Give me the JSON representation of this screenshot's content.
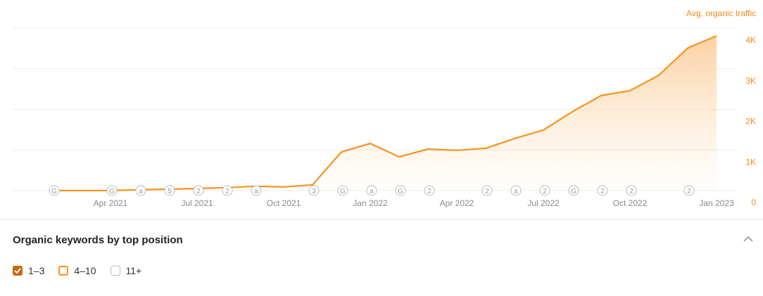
{
  "chart_data": {
    "type": "line",
    "y_label": "Avg. organic traffic",
    "categories": [
      null,
      null,
      "Apr 2021",
      null,
      null,
      "Jul 2021",
      null,
      null,
      "Oct 2021",
      null,
      null,
      "Jan 2022",
      null,
      null,
      "Apr 2022",
      null,
      null,
      "Jul 2022",
      null,
      null,
      "Oct 2022",
      null,
      null,
      "Jan 2023"
    ],
    "series": [
      {
        "name": "Avg. organic traffic",
        "color": "#f7931e",
        "values": [
          0,
          0,
          0,
          20,
          35,
          50,
          70,
          105,
          90,
          140,
          950,
          1160,
          830,
          1020,
          990,
          1040,
          1280,
          1490,
          1940,
          2340,
          2460,
          2840,
          3510,
          3810
        ]
      }
    ],
    "events": [
      "G",
      null,
      "G",
      "a",
      "5",
      "2",
      "2",
      "a",
      null,
      "3",
      "G",
      "a",
      "G",
      "2",
      null,
      "2",
      "a",
      "2",
      "G",
      "2",
      "2",
      null,
      "2",
      null
    ],
    "ylim": [
      0,
      4000
    ],
    "yticks": [
      0,
      {
        "value": 1000,
        "label": "1K"
      },
      {
        "value": 2000,
        "label": "2K"
      },
      {
        "value": 3000,
        "label": "3K"
      },
      {
        "value": 4000,
        "label": "4K"
      }
    ],
    "grid": true
  },
  "panel": {
    "title": "Organic keywords by top position",
    "filters": [
      {
        "label": "1–3",
        "state": "checked"
      },
      {
        "label": "4–10",
        "state": "outlined"
      },
      {
        "label": "11+",
        "state": "empty"
      }
    ]
  }
}
